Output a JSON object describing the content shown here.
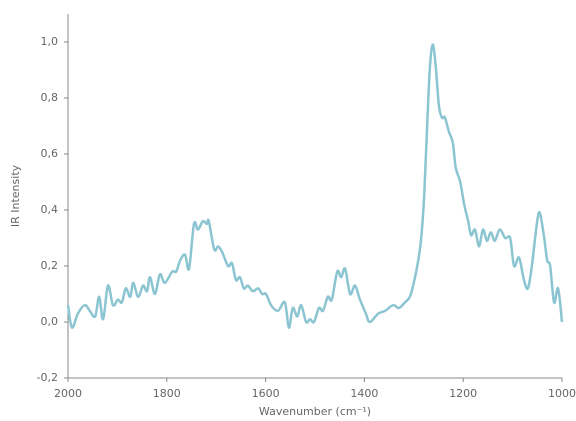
{
  "chart_data": {
    "type": "line",
    "x_label": "Wavenumber (cm⁻¹)",
    "y_label": "IR Intensity",
    "xlim": [
      2000,
      1000
    ],
    "xticks": [
      2000,
      1800,
      1600,
      1400,
      1200,
      1000
    ],
    "ylim": [
      -0.2,
      1.1
    ],
    "yticks": [
      {
        "value": -0.2,
        "label": "-0,2"
      },
      {
        "value": 0,
        "label": "0,0"
      },
      {
        "value": 0.2,
        "label": "0,2"
      },
      {
        "value": 0.4,
        "label": "0,4"
      },
      {
        "value": 0.6,
        "label": "0,6"
      },
      {
        "value": 0.8,
        "label": "0,8"
      },
      {
        "value": 1.0,
        "label": "1,0"
      }
    ],
    "grid": false,
    "series": [
      {
        "color": "#8cc5d2",
        "x": [
          2000,
          1992,
          1980,
          1966,
          1956,
          1945,
          1937,
          1929,
          1919,
          1909,
          1899,
          1891,
          1883,
          1874,
          1868,
          1858,
          1848,
          1840,
          1834,
          1824,
          1814,
          1804,
          1789,
          1781,
          1773,
          1763,
          1755,
          1745,
          1737,
          1727,
          1719,
          1715,
          1704,
          1696,
          1688,
          1676,
          1668,
          1660,
          1652,
          1644,
          1636,
          1626,
          1615,
          1607,
          1599,
          1589,
          1575,
          1561,
          1553,
          1545,
          1536,
          1528,
          1518,
          1510,
          1502,
          1492,
          1484,
          1474,
          1466,
          1455,
          1447,
          1439,
          1429,
          1419,
          1409,
          1397,
          1389,
          1372,
          1358,
          1342,
          1330,
          1318,
          1308,
          1300,
          1291,
          1285,
          1279,
          1273,
          1267,
          1261,
          1255,
          1249,
          1243,
          1237,
          1229,
          1221,
          1215,
          1206,
          1198,
          1190,
          1184,
          1176,
          1168,
          1160,
          1152,
          1144,
          1136,
          1126,
          1115,
          1105,
          1097,
          1087,
          1077,
          1069,
          1061,
          1051,
          1045,
          1036,
          1030,
          1024,
          1016,
          1008,
          1000
        ],
        "values": [
          0.06,
          -0.02,
          0.03,
          0.06,
          0.04,
          0.02,
          0.09,
          0.01,
          0.13,
          0.06,
          0.08,
          0.07,
          0.12,
          0.09,
          0.14,
          0.09,
          0.13,
          0.11,
          0.16,
          0.1,
          0.17,
          0.14,
          0.18,
          0.18,
          0.22,
          0.24,
          0.19,
          0.35,
          0.33,
          0.36,
          0.35,
          0.36,
          0.26,
          0.27,
          0.25,
          0.2,
          0.21,
          0.15,
          0.16,
          0.12,
          0.13,
          0.11,
          0.12,
          0.1,
          0.1,
          0.06,
          0.04,
          0.07,
          -0.02,
          0.05,
          0.02,
          0.06,
          0.0,
          0.01,
          0.0,
          0.05,
          0.04,
          0.09,
          0.08,
          0.18,
          0.16,
          0.19,
          0.1,
          0.13,
          0.08,
          0.03,
          0.0,
          0.03,
          0.04,
          0.06,
          0.05,
          0.07,
          0.09,
          0.14,
          0.22,
          0.3,
          0.45,
          0.7,
          0.92,
          0.99,
          0.9,
          0.77,
          0.73,
          0.73,
          0.68,
          0.64,
          0.55,
          0.5,
          0.42,
          0.36,
          0.31,
          0.33,
          0.27,
          0.33,
          0.29,
          0.32,
          0.29,
          0.33,
          0.3,
          0.3,
          0.2,
          0.23,
          0.15,
          0.12,
          0.2,
          0.35,
          0.39,
          0.3,
          0.22,
          0.2,
          0.07,
          0.12,
          0.0
        ]
      }
    ]
  }
}
